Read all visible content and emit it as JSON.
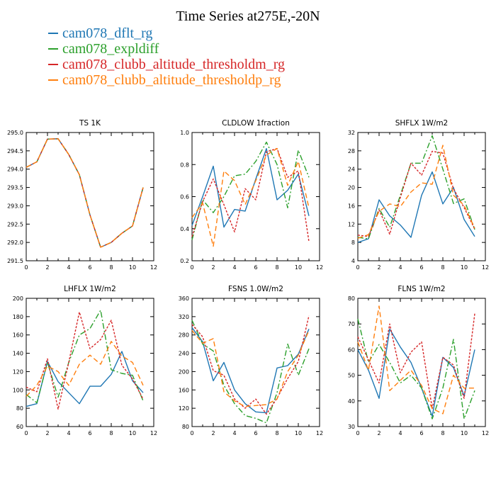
{
  "title": "Time Series at275E,-20N",
  "legend": [
    {
      "label": "cam078_dflt_rg",
      "color": "#1f77b4"
    },
    {
      "label": "cam078_expldiff",
      "color": "#2ca02c"
    },
    {
      "label": "cam078_clubb_altitude_thresholdm_rg",
      "color": "#d62728"
    },
    {
      "label": "cam078_clubb_altitude_thresholdp_rg",
      "color": "#ff7f0e"
    }
  ],
  "chart_data": [
    {
      "type": "line",
      "title": "TS   1K",
      "x": [
        0,
        1,
        2,
        3,
        4,
        5,
        6,
        7,
        8,
        9,
        10,
        11
      ],
      "xticks": [
        0,
        2,
        4,
        6,
        8,
        10,
        12
      ],
      "xlim": [
        0,
        12
      ],
      "ylim": [
        291.5,
        295.0
      ],
      "yticks": [
        "291.5",
        "292.0",
        "292.5",
        "293.0",
        "293.5",
        "294.0",
        "294.5",
        "295.0"
      ],
      "series": [
        {
          "name": "cam078_dflt_rg",
          "values": [
            294.05,
            294.2,
            294.82,
            294.83,
            294.4,
            293.85,
            292.75,
            291.87,
            292.0,
            292.25,
            292.45,
            293.5
          ]
        },
        {
          "name": "cam078_expldiff",
          "values": [
            294.05,
            294.2,
            294.82,
            294.83,
            294.4,
            293.85,
            292.75,
            291.87,
            292.0,
            292.25,
            292.45,
            293.5
          ]
        },
        {
          "name": "cam078_clubb_altitude_thresholdm_rg",
          "values": [
            294.05,
            294.2,
            294.82,
            294.83,
            294.4,
            293.85,
            292.75,
            291.87,
            292.0,
            292.25,
            292.45,
            293.5
          ]
        },
        {
          "name": "cam078_clubb_altitude_thresholdp_rg",
          "values": [
            294.05,
            294.2,
            294.82,
            294.83,
            294.4,
            293.85,
            292.75,
            291.87,
            292.0,
            292.25,
            292.45,
            293.5
          ]
        }
      ]
    },
    {
      "type": "line",
      "title": "CLDLOW   1fraction",
      "x": [
        0,
        1,
        2,
        3,
        4,
        5,
        6,
        7,
        8,
        9,
        10,
        11
      ],
      "xticks": [
        0,
        2,
        4,
        6,
        8,
        10,
        12
      ],
      "xlim": [
        0,
        12
      ],
      "ylim": [
        0.2,
        1.0
      ],
      "yticks": [
        "0.2",
        "0.4",
        "0.6",
        "0.8",
        "1.0"
      ],
      "series": [
        {
          "name": "cam078_dflt_rg",
          "values": [
            0.42,
            0.6,
            0.79,
            0.41,
            0.52,
            0.51,
            0.71,
            0.9,
            0.58,
            0.64,
            0.74,
            0.48
          ]
        },
        {
          "name": "cam078_expldiff",
          "values": [
            0.33,
            0.58,
            0.5,
            0.6,
            0.73,
            0.74,
            0.82,
            0.94,
            0.8,
            0.53,
            0.89,
            0.72
          ]
        },
        {
          "name": "cam078_clubb_altitude_thresholdm_rg",
          "values": [
            0.35,
            0.57,
            0.71,
            0.55,
            0.38,
            0.65,
            0.58,
            0.88,
            0.9,
            0.72,
            0.76,
            0.32
          ]
        },
        {
          "name": "cam078_clubb_altitude_thresholdp_rg",
          "values": [
            0.47,
            0.56,
            0.29,
            0.76,
            0.7,
            0.55,
            0.7,
            0.86,
            0.9,
            0.67,
            0.82,
            0.53
          ]
        }
      ]
    },
    {
      "type": "line",
      "title": "SHFLX   1W/m2",
      "x": [
        0,
        1,
        2,
        3,
        4,
        5,
        6,
        7,
        8,
        9,
        10,
        11
      ],
      "xticks": [
        0,
        2,
        4,
        6,
        8,
        10,
        12
      ],
      "xlim": [
        0,
        12
      ],
      "ylim": [
        4,
        32
      ],
      "yticks": [
        "4",
        "8",
        "12",
        "16",
        "20",
        "24",
        "28",
        "32"
      ],
      "series": [
        {
          "name": "cam078_dflt_rg",
          "values": [
            8,
            8.8,
            17.3,
            13.8,
            11.8,
            9.1,
            18.3,
            23.4,
            16.4,
            20,
            13,
            9.3
          ]
        },
        {
          "name": "cam078_expldiff",
          "values": [
            9.1,
            8.8,
            15.4,
            11.3,
            18.3,
            25.3,
            25.3,
            31.3,
            24,
            16.5,
            17.5,
            10.8
          ]
        },
        {
          "name": "cam078_clubb_altitude_thresholdm_rg",
          "values": [
            9.6,
            9.3,
            15.1,
            9.8,
            17.8,
            25.3,
            22.7,
            27.9,
            27.5,
            19.7,
            15.6,
            10.9
          ]
        },
        {
          "name": "cam078_clubb_altitude_thresholdp_rg",
          "values": [
            8.9,
            9.7,
            14.8,
            16.4,
            15.8,
            19,
            21,
            20.7,
            29.2,
            18.3,
            16.1,
            11.1
          ]
        }
      ]
    },
    {
      "type": "line",
      "title": "LHFLX   1W/m2",
      "x": [
        0,
        1,
        2,
        3,
        4,
        5,
        6,
        7,
        8,
        9,
        10,
        11
      ],
      "xticks": [
        0,
        2,
        4,
        6,
        8,
        10,
        12
      ],
      "xlim": [
        0,
        12
      ],
      "ylim": [
        60,
        200
      ],
      "yticks": [
        "60",
        "80",
        "100",
        "120",
        "140",
        "160",
        "180",
        "200"
      ],
      "series": [
        {
          "name": "cam078_dflt_rg",
          "values": [
            82,
            85,
            131,
            109,
            97,
            85,
            104,
            104,
            117,
            142,
            110,
            97
          ]
        },
        {
          "name": "cam078_expldiff",
          "values": [
            95,
            86,
            130,
            92,
            130,
            160,
            167,
            187,
            122,
            118,
            116,
            88
          ]
        },
        {
          "name": "cam078_clubb_altitude_thresholdm_rg",
          "values": [
            103,
            98,
            134,
            79,
            130,
            185,
            145,
            155,
            176,
            127,
            112,
            90
          ]
        },
        {
          "name": "cam078_clubb_altitude_thresholdp_rg",
          "values": [
            93,
            105,
            126,
            120,
            105,
            128,
            138,
            128,
            153,
            137,
            130,
            105
          ]
        }
      ]
    },
    {
      "type": "line",
      "title": "FSNS   1.0W/m2",
      "x": [
        0,
        1,
        2,
        3,
        4,
        5,
        6,
        7,
        8,
        9,
        10,
        11
      ],
      "xticks": [
        0,
        2,
        4,
        6,
        8,
        10,
        12
      ],
      "xlim": [
        0,
        12
      ],
      "ylim": [
        80,
        360
      ],
      "yticks": [
        "80",
        "120",
        "160",
        "200",
        "240",
        "280",
        "320",
        "360"
      ],
      "series": [
        {
          "name": "cam078_dflt_rg",
          "values": [
            296,
            265,
            180,
            220,
            160,
            130,
            112,
            110,
            208,
            213,
            238,
            293
          ]
        },
        {
          "name": "cam078_expldiff",
          "values": [
            312,
            260,
            245,
            170,
            130,
            104,
            98,
            88,
            154,
            260,
            192,
            250
          ]
        },
        {
          "name": "cam078_clubb_altitude_thresholdm_rg",
          "values": [
            303,
            276,
            202,
            192,
            140,
            120,
            140,
            107,
            142,
            185,
            222,
            322
          ]
        },
        {
          "name": "cam078_clubb_altitude_thresholdp_rg",
          "values": [
            290,
            262,
            272,
            156,
            136,
            124,
            126,
            128,
            140,
            200,
            236,
            290
          ]
        }
      ]
    },
    {
      "type": "line",
      "title": "FLNS   1W/m2",
      "x": [
        0,
        1,
        2,
        3,
        4,
        5,
        6,
        7,
        8,
        9,
        10,
        11
      ],
      "xticks": [
        0,
        2,
        4,
        6,
        8,
        10,
        12
      ],
      "xlim": [
        0,
        12
      ],
      "ylim": [
        30,
        80
      ],
      "yticks": [
        "30",
        "40",
        "50",
        "60",
        "70",
        "80"
      ],
      "series": [
        {
          "name": "cam078_dflt_rg",
          "values": [
            60,
            52,
            41,
            68,
            61,
            55,
            45,
            34,
            57,
            53,
            42,
            60
          ]
        },
        {
          "name": "cam078_expldiff",
          "values": [
            72,
            55,
            62,
            55,
            47,
            50,
            45,
            33,
            45,
            64,
            33,
            44
          ]
        },
        {
          "name": "cam078_clubb_altitude_thresholdm_rg",
          "values": [
            65,
            56,
            47,
            70,
            51,
            59,
            63,
            37,
            57,
            54,
            41,
            74
          ]
        },
        {
          "name": "cam078_clubb_altitude_thresholdp_rg",
          "values": [
            63,
            52,
            77,
            44,
            48,
            52,
            46,
            37,
            35,
            50,
            45,
            45
          ]
        }
      ]
    }
  ]
}
